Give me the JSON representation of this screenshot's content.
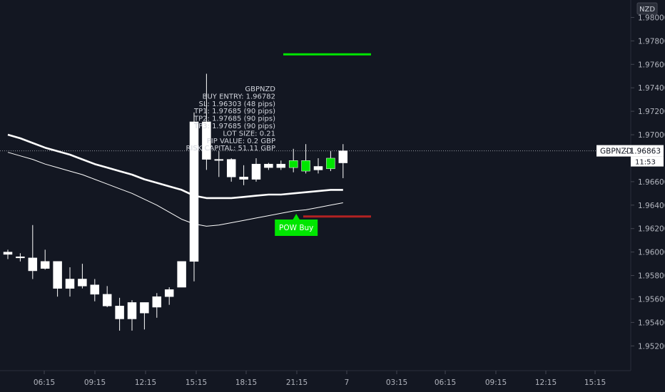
{
  "chart_data": {
    "type": "candlestick",
    "symbol": "GBPNZD",
    "currency": "NZD",
    "y_ticks": [
      "1.98000",
      "1.97800",
      "1.97600",
      "1.97400",
      "1.97200",
      "1.97000",
      "1.96600",
      "1.96400",
      "1.96200",
      "1.96000",
      "1.95800",
      "1.95600",
      "1.95400",
      "1.95200"
    ],
    "y_tick_values": [
      1.98,
      1.978,
      1.976,
      1.974,
      1.972,
      1.97,
      1.966,
      1.964,
      1.962,
      1.96,
      1.958,
      1.956,
      1.954,
      1.952
    ],
    "ylim": [
      1.9505,
      1.981
    ],
    "x_ticks": [
      "06:15",
      "09:15",
      "12:15",
      "15:15",
      "18:15",
      "21:15",
      "7",
      "03:15",
      "06:15",
      "09:15",
      "12:15",
      "15:15"
    ],
    "last_price": {
      "symbol": "GBPNZD",
      "value": "1.96863",
      "numeric": 1.96863,
      "countdown": "11:53"
    },
    "candles": [
      {
        "o": 1.96,
        "h": 1.9602,
        "l": 1.9594,
        "c": 1.9598,
        "color": "white"
      },
      {
        "o": 1.9595,
        "h": 1.9599,
        "l": 1.9592,
        "c": 1.9596,
        "color": "white"
      },
      {
        "o": 1.9595,
        "h": 1.9623,
        "l": 1.9577,
        "c": 1.9584,
        "color": "white"
      },
      {
        "o": 1.9592,
        "h": 1.9602,
        "l": 1.9585,
        "c": 1.9586,
        "color": "white"
      },
      {
        "o": 1.9592,
        "h": 1.9592,
        "l": 1.9562,
        "c": 1.9569,
        "color": "white"
      },
      {
        "o": 1.9577,
        "h": 1.9587,
        "l": 1.9562,
        "c": 1.9569,
        "color": "white"
      },
      {
        "o": 1.9577,
        "h": 1.959,
        "l": 1.9569,
        "c": 1.9571,
        "color": "white"
      },
      {
        "o": 1.9572,
        "h": 1.9577,
        "l": 1.9558,
        "c": 1.9564,
        "color": "white"
      },
      {
        "o": 1.9564,
        "h": 1.9571,
        "l": 1.9553,
        "c": 1.9554,
        "color": "white"
      },
      {
        "o": 1.9554,
        "h": 1.9561,
        "l": 1.9533,
        "c": 1.9543,
        "color": "white"
      },
      {
        "o": 1.9543,
        "h": 1.9559,
        "l": 1.9533,
        "c": 1.9557,
        "color": "white"
      },
      {
        "o": 1.9548,
        "h": 1.9557,
        "l": 1.9534,
        "c": 1.9557,
        "color": "white"
      },
      {
        "o": 1.9553,
        "h": 1.9565,
        "l": 1.9544,
        "c": 1.9562,
        "color": "white"
      },
      {
        "o": 1.9562,
        "h": 1.957,
        "l": 1.9555,
        "c": 1.9568,
        "color": "white"
      },
      {
        "o": 1.957,
        "h": 1.9591,
        "l": 1.957,
        "c": 1.9592,
        "color": "white"
      },
      {
        "o": 1.9592,
        "h": 1.9719,
        "l": 1.9575,
        "c": 1.9711,
        "color": "white"
      },
      {
        "o": 1.9711,
        "h": 1.9752,
        "l": 1.967,
        "c": 1.9679,
        "color": "white"
      },
      {
        "o": 1.9679,
        "h": 1.9686,
        "l": 1.9664,
        "c": 1.9679,
        "color": "white"
      },
      {
        "o": 1.9679,
        "h": 1.968,
        "l": 1.966,
        "c": 1.9664,
        "color": "white"
      },
      {
        "o": 1.9664,
        "h": 1.9674,
        "l": 1.9657,
        "c": 1.9662,
        "color": "white"
      },
      {
        "o": 1.9662,
        "h": 1.968,
        "l": 1.966,
        "c": 1.9675,
        "color": "white"
      },
      {
        "o": 1.9675,
        "h": 1.9676,
        "l": 1.967,
        "c": 1.9672,
        "color": "white"
      },
      {
        "o": 1.9672,
        "h": 1.9678,
        "l": 1.967,
        "c": 1.9675,
        "color": "white"
      },
      {
        "o": 1.9672,
        "h": 1.9688,
        "l": 1.9668,
        "c": 1.9678,
        "color": "green"
      },
      {
        "o": 1.9669,
        "h": 1.9692,
        "l": 1.9667,
        "c": 1.9678,
        "color": "green"
      },
      {
        "o": 1.967,
        "h": 1.968,
        "l": 1.9667,
        "c": 1.9673,
        "color": "white"
      },
      {
        "o": 1.9671,
        "h": 1.9686,
        "l": 1.9669,
        "c": 1.968,
        "color": "green"
      },
      {
        "o": 1.9676,
        "h": 1.9692,
        "l": 1.9663,
        "c": 1.96863,
        "color": "white"
      }
    ],
    "ma_fast": [
      1.97,
      1.9697,
      1.9693,
      1.9689,
      1.9686,
      1.9683,
      1.9679,
      1.9675,
      1.9672,
      1.9669,
      1.9666,
      1.9662,
      1.9659,
      1.9656,
      1.9653,
      1.9648,
      1.9646,
      1.9646,
      1.9646,
      1.9647,
      1.9648,
      1.9649,
      1.9649,
      1.965,
      1.9651,
      1.9652,
      1.9653,
      1.9653
    ],
    "ma_slow": [
      1.9685,
      1.9682,
      1.9679,
      1.9675,
      1.9672,
      1.9669,
      1.9666,
      1.9662,
      1.9658,
      1.9654,
      1.965,
      1.9645,
      1.964,
      1.9634,
      1.9628,
      1.9624,
      1.9622,
      1.9623,
      1.9625,
      1.9627,
      1.9629,
      1.9631,
      1.9633,
      1.9635,
      1.9636,
      1.9638,
      1.964,
      1.9642
    ],
    "target_level": 1.97685,
    "stop_level": 1.96303,
    "signal_label": "POW Buy",
    "info_lines": [
      "GBPNZD",
      "BUY ENTRY: 1.96782",
      "SL: 1.96303 (48 pips)",
      "TP1: 1.97685 (90 pips)",
      "TP2: 1.97685 (90 pips)",
      "TP3: 1.97685 (90 pips)",
      "LOT SIZE: 0.21",
      "PIP VALUE: 0.2 GBP",
      "RISK CAPITAL: 51.11 GBP"
    ],
    "colors": {
      "background": "#131722",
      "candle_up": "#ffffff",
      "candle_green": "#00e600",
      "target_line": "#00e600",
      "stop_line": "#b22222",
      "signal_box": "#00e600",
      "price_line": "#9598a1"
    }
  }
}
